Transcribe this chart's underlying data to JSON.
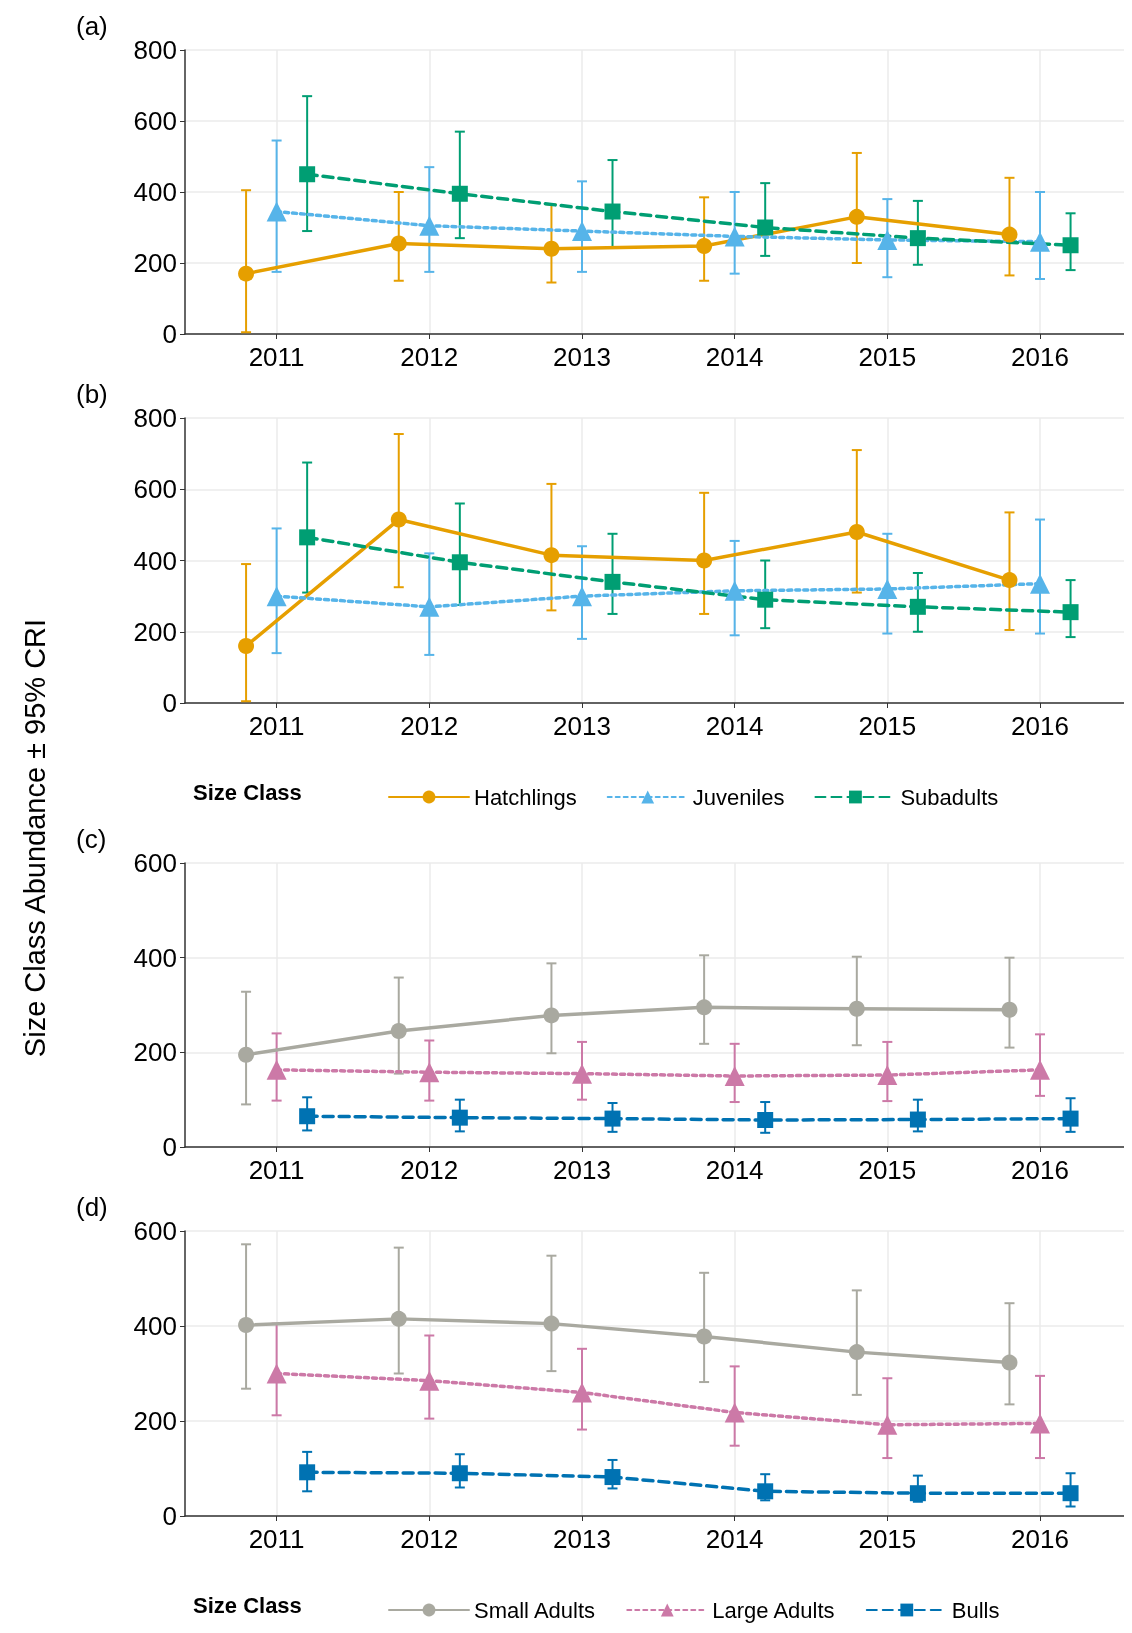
{
  "chart_data": [
    {
      "type": "line",
      "title": "(a)",
      "xlim": [
        2010.4,
        2016.55
      ],
      "xticks": [
        2011,
        2012,
        2013,
        2014,
        2015,
        2016
      ],
      "ylim": [
        0,
        800
      ],
      "yticks": [
        0,
        200,
        400,
        600,
        800
      ],
      "grid": true,
      "legend": false,
      "series": [
        {
          "color": "#e69f00",
          "marker": "circle",
          "line_style": "solid",
          "x": [
            2010.8,
            2011.8,
            2012.8,
            2013.8,
            2014.8,
            2015.8
          ],
          "values": [
            170,
            255,
            240,
            248,
            330,
            280
          ],
          "errors": [
            [
              5,
              405
            ],
            [
              150,
              400
            ],
            [
              145,
              365
            ],
            [
              150,
              385
            ],
            [
              200,
              510
            ],
            [
              165,
              440
            ]
          ]
        },
        {
          "color": "#56b4e9",
          "marker": "triangle",
          "line_style": "dotted",
          "x": [
            2011,
            2012,
            2013,
            2014,
            2015,
            2016
          ],
          "values": [
            345,
            305,
            290,
            275,
            265,
            260
          ],
          "errors": [
            [
              175,
              545
            ],
            [
              175,
              470
            ],
            [
              175,
              430
            ],
            [
              170,
              400
            ],
            [
              160,
              380
            ],
            [
              155,
              400
            ]
          ]
        },
        {
          "color": "#009e73",
          "marker": "square",
          "line_style": "dashed",
          "x": [
            2011.2,
            2012.2,
            2013.2,
            2014.2,
            2015.2,
            2016.2
          ],
          "values": [
            450,
            395,
            345,
            300,
            270,
            250
          ],
          "errors": [
            [
              290,
              670
            ],
            [
              270,
              570
            ],
            [
              245,
              490
            ],
            [
              220,
              425
            ],
            [
              195,
              375
            ],
            [
              180,
              340
            ]
          ]
        }
      ]
    },
    {
      "type": "line",
      "title": "(b)",
      "ylabel": "Size Class Abundance ± 95% CRI",
      "legend_title": "Size Class",
      "xlim": [
        2010.4,
        2016.55
      ],
      "xticks": [
        2011,
        2012,
        2013,
        2014,
        2015,
        2016
      ],
      "ylim": [
        0,
        800
      ],
      "yticks": [
        0,
        200,
        400,
        600,
        800
      ],
      "grid": true,
      "legend": "bottom",
      "series": [
        {
          "name": "Hatchlings",
          "color": "#e69f00",
          "marker": "circle",
          "line_style": "solid",
          "x": [
            2010.8,
            2011.8,
            2012.8,
            2013.8,
            2014.8,
            2015.8
          ],
          "values": [
            160,
            515,
            415,
            400,
            480,
            345
          ],
          "errors": [
            [
              5,
              390
            ],
            [
              325,
              755
            ],
            [
              260,
              615
            ],
            [
              250,
              590
            ],
            [
              310,
              710
            ],
            [
              205,
              535
            ]
          ]
        },
        {
          "name": "Juveniles",
          "color": "#56b4e9",
          "marker": "triangle",
          "line_style": "dotted",
          "x": [
            2011,
            2012,
            2013,
            2014,
            2015,
            2016
          ],
          "values": [
            300,
            270,
            300,
            315,
            320,
            335
          ],
          "errors": [
            [
              140,
              490
            ],
            [
              135,
              420
            ],
            [
              180,
              440
            ],
            [
              190,
              455
            ],
            [
              195,
              475
            ],
            [
              195,
              515
            ]
          ]
        },
        {
          "name": "Subadults",
          "color": "#009e73",
          "marker": "square",
          "line_style": "dashed",
          "x": [
            2011.2,
            2012.2,
            2013.2,
            2014.2,
            2015.2,
            2016.2
          ],
          "values": [
            465,
            395,
            340,
            290,
            270,
            255
          ],
          "errors": [
            [
              310,
              675
            ],
            [
              275,
              560
            ],
            [
              250,
              475
            ],
            [
              210,
              400
            ],
            [
              200,
              365
            ],
            [
              185,
              345
            ]
          ]
        }
      ]
    },
    {
      "type": "line",
      "title": "(c)",
      "xlim": [
        2010.4,
        2016.55
      ],
      "xticks": [
        2011,
        2012,
        2013,
        2014,
        2015,
        2016
      ],
      "ylim": [
        0,
        600
      ],
      "yticks": [
        0,
        200,
        400,
        600
      ],
      "grid": true,
      "legend": false,
      "series": [
        {
          "color": "#a9a9a0",
          "marker": "circle",
          "line_style": "solid",
          "x": [
            2010.8,
            2011.8,
            2012.8,
            2013.8,
            2014.8,
            2015.8
          ],
          "values": [
            195,
            245,
            278,
            295,
            292,
            290
          ],
          "errors": [
            [
              90,
              328
            ],
            [
              155,
              358
            ],
            [
              198,
              388
            ],
            [
              218,
              405
            ],
            [
              215,
              402
            ],
            [
              210,
              400
            ]
          ]
        },
        {
          "color": "#cc79a7",
          "marker": "triangle",
          "line_style": "dotted",
          "x": [
            2011,
            2012,
            2013,
            2014,
            2015,
            2016
          ],
          "values": [
            163,
            158,
            155,
            150,
            152,
            163
          ],
          "errors": [
            [
              98,
              240
            ],
            [
              98,
              225
            ],
            [
              100,
              222
            ],
            [
              95,
              218
            ],
            [
              97,
              222
            ],
            [
              108,
              238
            ]
          ]
        },
        {
          "color": "#0072b2",
          "marker": "square",
          "line_style": "dashed",
          "x": [
            2011.2,
            2012.2,
            2013.2,
            2014.2,
            2015.2,
            2016.2
          ],
          "values": [
            65,
            62,
            60,
            57,
            58,
            60
          ],
          "errors": [
            [
              35,
              105
            ],
            [
              33,
              100
            ],
            [
              32,
              93
            ],
            [
              30,
              95
            ],
            [
              33,
              100
            ],
            [
              32,
              103
            ]
          ]
        }
      ]
    },
    {
      "type": "line",
      "title": "(d)",
      "legend_title": "Size Class",
      "xlim": [
        2010.4,
        2016.55
      ],
      "xticks": [
        2011,
        2012,
        2013,
        2014,
        2015,
        2016
      ],
      "ylim": [
        0,
        600
      ],
      "yticks": [
        0,
        200,
        400,
        600
      ],
      "grid": true,
      "legend": "bottom",
      "series": [
        {
          "name": "Small Adults",
          "color": "#a9a9a0",
          "marker": "circle",
          "line_style": "solid",
          "x": [
            2010.8,
            2011.8,
            2012.8,
            2013.8,
            2014.8,
            2015.8
          ],
          "values": [
            402,
            415,
            405,
            378,
            345,
            323
          ],
          "errors": [
            [
              268,
              572
            ],
            [
              300,
              565
            ],
            [
              305,
              548
            ],
            [
              282,
              512
            ],
            [
              255,
              475
            ],
            [
              235,
              448
            ]
          ]
        },
        {
          "name": "Large Adults",
          "color": "#cc79a7",
          "marker": "triangle",
          "line_style": "dotted",
          "x": [
            2011,
            2012,
            2013,
            2014,
            2015,
            2016
          ],
          "values": [
            300,
            285,
            260,
            218,
            192,
            195
          ],
          "errors": [
            [
              212,
              405
            ],
            [
              205,
              380
            ],
            [
              182,
              352
            ],
            [
              148,
              315
            ],
            [
              122,
              290
            ],
            [
              122,
              295
            ]
          ]
        },
        {
          "name": "Bulls",
          "color": "#0072b2",
          "marker": "square",
          "line_style": "dashed",
          "x": [
            2011.2,
            2012.2,
            2013.2,
            2014.2,
            2015.2,
            2016.2
          ],
          "values": [
            92,
            90,
            82,
            52,
            48,
            48
          ],
          "errors": [
            [
              52,
              135
            ],
            [
              60,
              130
            ],
            [
              58,
              118
            ],
            [
              33,
              88
            ],
            [
              30,
              85
            ],
            [
              20,
              90
            ]
          ]
        }
      ]
    }
  ]
}
